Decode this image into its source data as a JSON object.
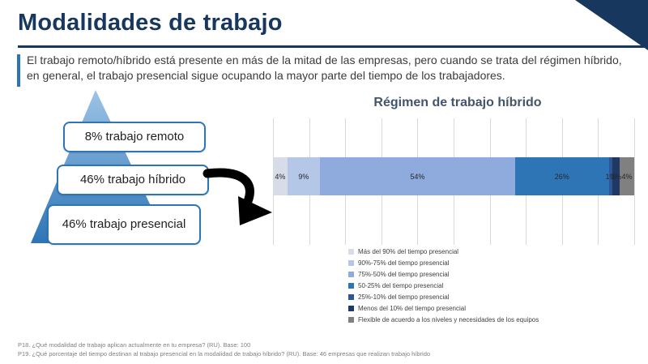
{
  "slide": {
    "title": "Modalidades de trabajo",
    "subtitle": "El trabajo remoto/híbrido está presente en más de la mitad de las empresas, pero cuando se trata del régimen híbrido, en general, el trabajo presencial sigue ocupando la mayor parte del tiempo de los trabajadores.",
    "accent_color": "#17375E"
  },
  "pyramid": {
    "labels": [
      "8% trabajo remoto",
      "46% trabajo híbrido",
      "46% trabajo presencial"
    ]
  },
  "chart_data": [
    {
      "type": "bar",
      "variant": "pyramid-distribution",
      "title": "",
      "categories": [
        "trabajo remoto",
        "trabajo híbrido",
        "trabajo presencial"
      ],
      "values": [
        8,
        46,
        46
      ]
    },
    {
      "type": "bar",
      "variant": "horizontal-stacked",
      "title": "Régimen de trabajo híbrido",
      "categories": [
        "Más del 90% del tiempo presencial",
        "90%-75% del tiempo presencial",
        "75%-50% del tiempo presencial",
        "50-25% del tiempo presencial",
        "25%-10% del tiempo presencial",
        "Menos del 10% del tiempo presencial",
        "Flexible de acuerdo a los niveles y necesidades de los equipos"
      ],
      "values": [
        4,
        9,
        54,
        26,
        1,
        2,
        4
      ],
      "labels": [
        "4%",
        "9%",
        "54%",
        "26%",
        "1%",
        "2%",
        "4%"
      ],
      "colors": [
        "#D8DCE8",
        "#B4C7E7",
        "#8FAADC",
        "#2E75B6",
        "#2F5597",
        "#1F3864",
        "#808080"
      ],
      "xlim": [
        0,
        100
      ],
      "grid": true,
      "legend_position": "bottom"
    }
  ],
  "footnotes": [
    "P18. ¿Qué modalidad de trabajo aplican actualmente en tu empresa? (RU). Base: 100",
    "P19. ¿Qué porcentaje del tiempo destinan al trabajo presencial en la modalidad de trabajo híbrido? (RU). Base: 46 empresas que realizan trabajo híbrido"
  ]
}
